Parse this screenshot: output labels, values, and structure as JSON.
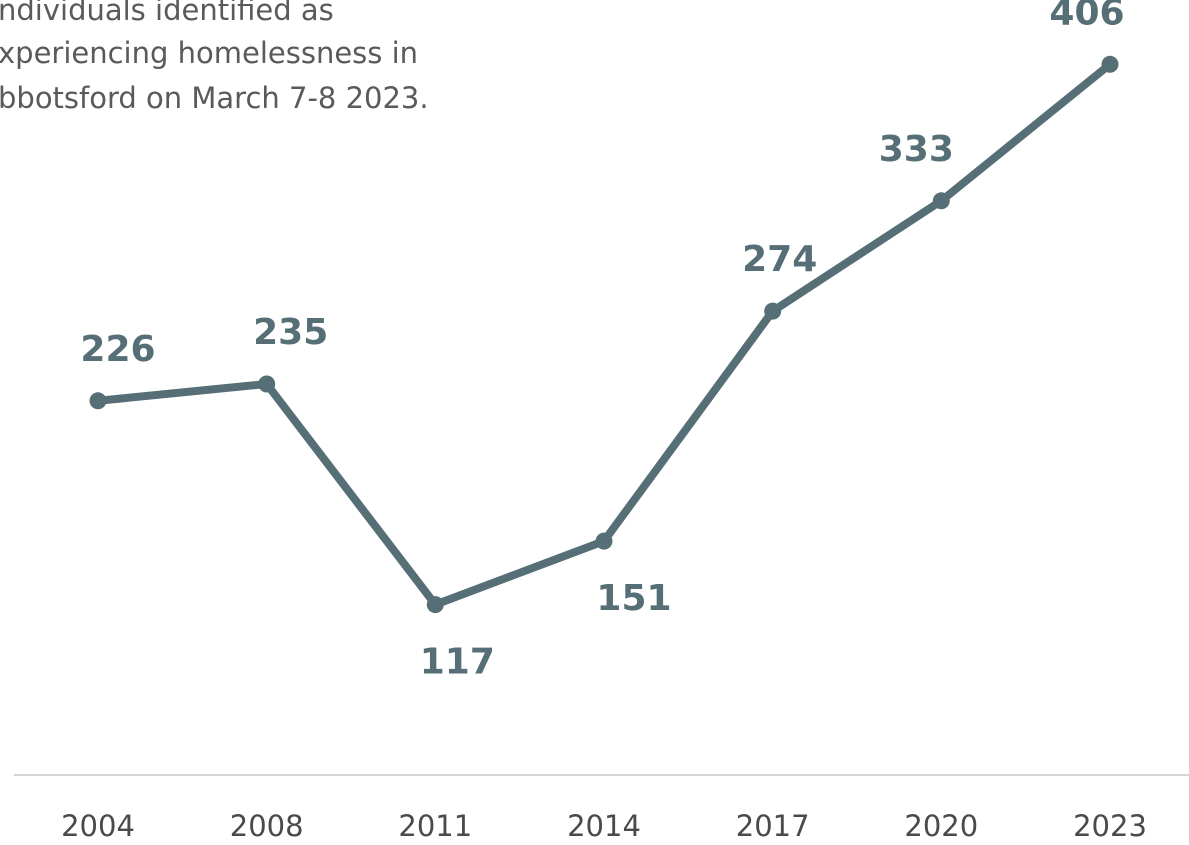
{
  "caption": {
    "lines": [
      "ndividuals identified as",
      "xperiencing homelessness in",
      "bbotsford on March 7-8 2023."
    ]
  },
  "colors": {
    "line": "#566e75",
    "axis": "#d4d4d4",
    "caption": "#5a5a5a",
    "tick": "#4a4a4a"
  },
  "chart_data": {
    "type": "line",
    "categories": [
      "2004",
      "2008",
      "2011",
      "2014",
      "2017",
      "2020",
      "2023"
    ],
    "series": [
      {
        "values": [
          226,
          235,
          117,
          151,
          274,
          333,
          406
        ],
        "data_labels": [
          "226",
          "235",
          "117",
          "151",
          "274",
          "333",
          "406"
        ]
      }
    ],
    "ylim": [
      0,
      420
    ],
    "grid": false,
    "legend": "none",
    "title": "",
    "xlabel": "",
    "ylabel": ""
  }
}
